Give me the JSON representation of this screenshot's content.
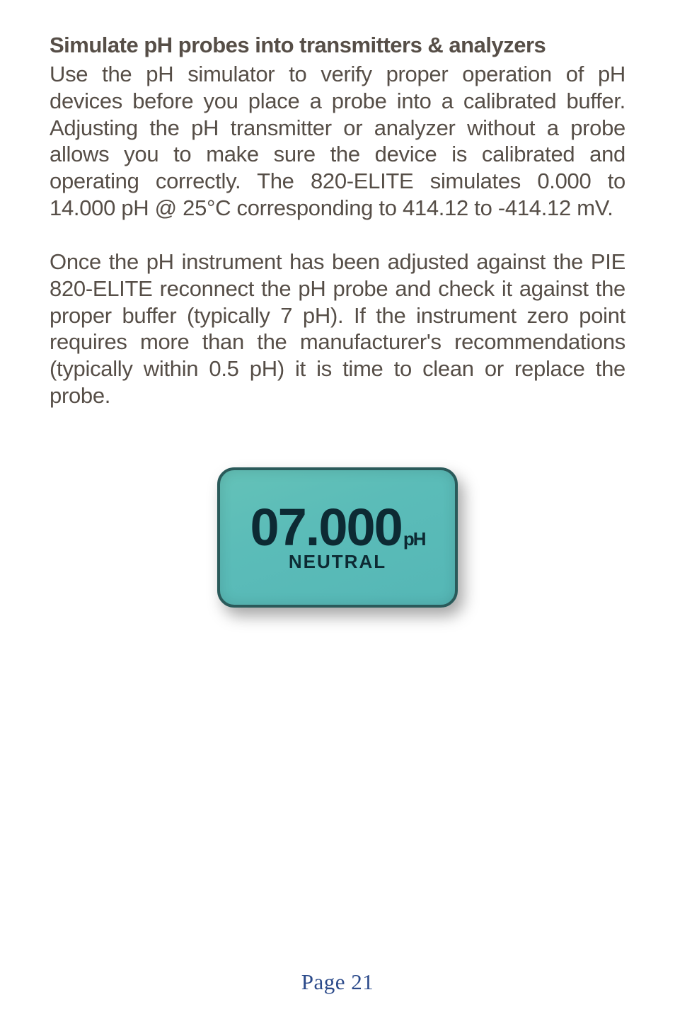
{
  "title": "Simulate pH probes into transmitters & analyzers",
  "paragraph1": "Use the pH simulator to verify proper operation of pH devices before you place a probe into a calibrated buffer.  Adjusting the pH transmitter or analyzer without a probe allows you to make sure the device is calibrated and operating correctly. The 820-ELITE simulates 0.000 to 14.000 pH @ 25°C corresponding to 414.12 to -414.12 mV.",
  "paragraph2": "Once the pH instrument has been adjusted against the PIE 820-ELITE reconnect the pH probe and check it against the proper buffer (typically 7 pH). If the instrument zero point requires more than the manufacturer's recommendations (typically within 0.5 pH) it is time to clean or replace the probe.",
  "lcd": {
    "value": "07.000",
    "unit": "pH",
    "sub": "NEUTRAL",
    "bg_gradient_start": "#64c2b8",
    "bg_gradient_end": "#55b7b6",
    "text_color": "#0d2a33",
    "border_color": "#2a5a5a"
  },
  "page_label": "Page 21"
}
